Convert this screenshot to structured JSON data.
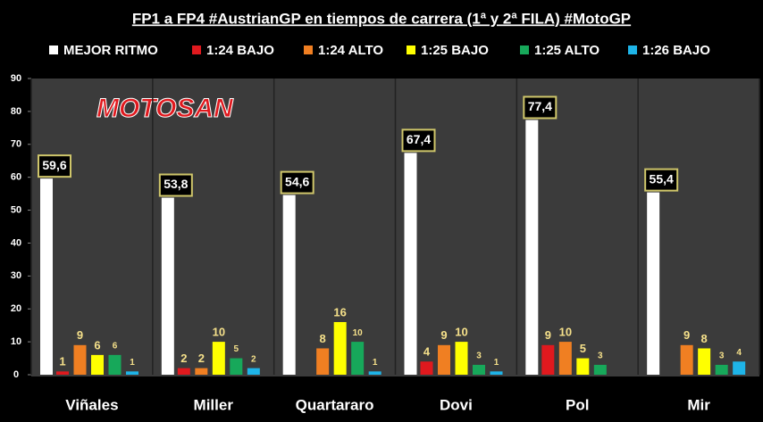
{
  "chart_data": {
    "type": "bar",
    "title": "FP1 a FP4 #AustrianGP en tiempos de carrera (1ª y 2ª FILA) #MotoGP",
    "logo": "MOTOSAN",
    "categories": [
      "Viñales",
      "Miller",
      "Quartararo",
      "Dovi",
      "Pol",
      "Mir"
    ],
    "series": [
      {
        "name": "MEJOR RITMO",
        "color": "#ffffff",
        "values": [
          59.6,
          53.8,
          54.6,
          67.4,
          77.4,
          55.4
        ],
        "value_labels": [
          "59,6",
          "53,8",
          "54,6",
          "67,4",
          "77,4",
          "55,4"
        ]
      },
      {
        "name": "1:24 BAJO",
        "color": "#e0191e",
        "values": [
          1,
          2,
          null,
          4,
          9,
          null
        ]
      },
      {
        "name": "1:24 ALTO",
        "color": "#f07f22",
        "values": [
          9,
          2,
          8,
          9,
          10,
          9
        ]
      },
      {
        "name": "1:25 BAJO",
        "color": "#ffff00",
        "values": [
          6,
          10,
          16,
          10,
          5,
          8
        ]
      },
      {
        "name": "1:25 ALTO",
        "color": "#17a85a",
        "values": [
          6,
          5,
          10,
          3,
          3,
          3
        ]
      },
      {
        "name": "1:26 BAJO",
        "color": "#1eb4e8",
        "values": [
          1,
          2,
          1,
          1,
          null,
          4
        ]
      }
    ],
    "ylim": [
      0,
      90
    ],
    "yticks": [
      0,
      10,
      20,
      30,
      40,
      50,
      60,
      70,
      80,
      90
    ],
    "grid": true
  }
}
